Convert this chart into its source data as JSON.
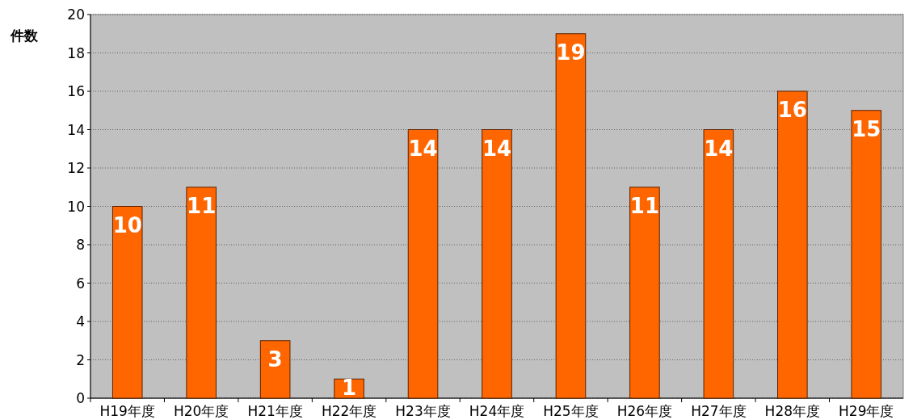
{
  "chart_data": {
    "type": "bar",
    "ylabel": "件数",
    "categories": [
      "H19年度",
      "H20年度",
      "H21年度",
      "H22年度",
      "H23年度",
      "H24年度",
      "H25年度",
      "H26年度",
      "H27年度",
      "H28年度",
      "H29年度"
    ],
    "values": [
      10,
      11,
      3,
      1,
      14,
      14,
      19,
      11,
      14,
      16,
      15
    ],
    "color": "#ff6600",
    "data_labels": true,
    "ylim": [
      0,
      20
    ],
    "yticks": [
      0,
      2,
      4,
      6,
      8,
      10,
      12,
      14,
      16,
      18,
      20
    ],
    "grid": "y"
  }
}
